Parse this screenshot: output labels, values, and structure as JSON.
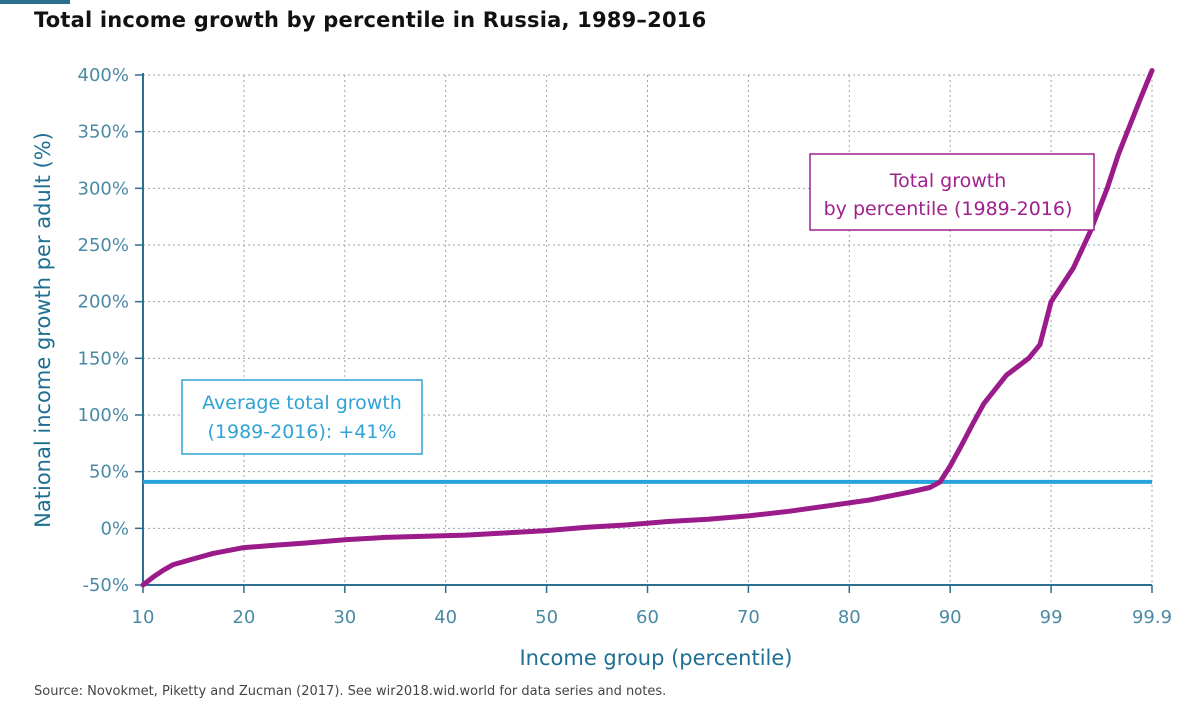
{
  "title": "Total income growth by percentile in Russia, 1989–2016",
  "source": "Source: Novokmet, Piketty and Zucman (2017). See wir2018.wid.world for data series and notes.",
  "colors": {
    "growth_line": "#9b1b8a",
    "average_line": "#2aa3dc",
    "axis": "#2c6e8f"
  },
  "chart_data": {
    "type": "line",
    "xlabel": "Income group (percentile)",
    "ylabel": "National income growth per adult (%)",
    "x_categories": [
      "10",
      "20",
      "30",
      "40",
      "50",
      "60",
      "70",
      "80",
      "90",
      "99",
      "99.9"
    ],
    "y_ticks": [
      "-50%",
      "0%",
      "50%",
      "100%",
      "150%",
      "200%",
      "250%",
      "300%",
      "350%",
      "400%"
    ],
    "ylim": [
      -50,
      400
    ],
    "grid": true,
    "series": [
      {
        "name": "Total growth by percentile (1989-2016)",
        "x": [
          10,
          11,
          12,
          13,
          15,
          17,
          20,
          23,
          26,
          30,
          34,
          38,
          42,
          46,
          50,
          54,
          58,
          62,
          66,
          70,
          74,
          78,
          82,
          86,
          88,
          89,
          90,
          91,
          92,
          93,
          95,
          97,
          98,
          99,
          99.2,
          99.35,
          99.5,
          99.6,
          99.7,
          99.8,
          99.9
        ],
        "y": [
          -50,
          -43,
          -37,
          -32,
          -27,
          -22,
          -17,
          -15,
          -13,
          -10,
          -8,
          -7,
          -6,
          -4,
          -2,
          1,
          3,
          6,
          8,
          11,
          15,
          20,
          25,
          32,
          36,
          41,
          55,
          73,
          92,
          110,
          135,
          150,
          162,
          200,
          230,
          262,
          300,
          330,
          355,
          380,
          404
        ]
      }
    ],
    "reference_line": {
      "name": "Average total growth (1989-2016): +41%",
      "y": 41
    },
    "annotations": {
      "average": {
        "line1": "Average total growth",
        "line2": "(1989-2016): +41%"
      },
      "growth": {
        "line1": "Total growth",
        "line2": "by percentile (1989-2016)"
      }
    }
  }
}
